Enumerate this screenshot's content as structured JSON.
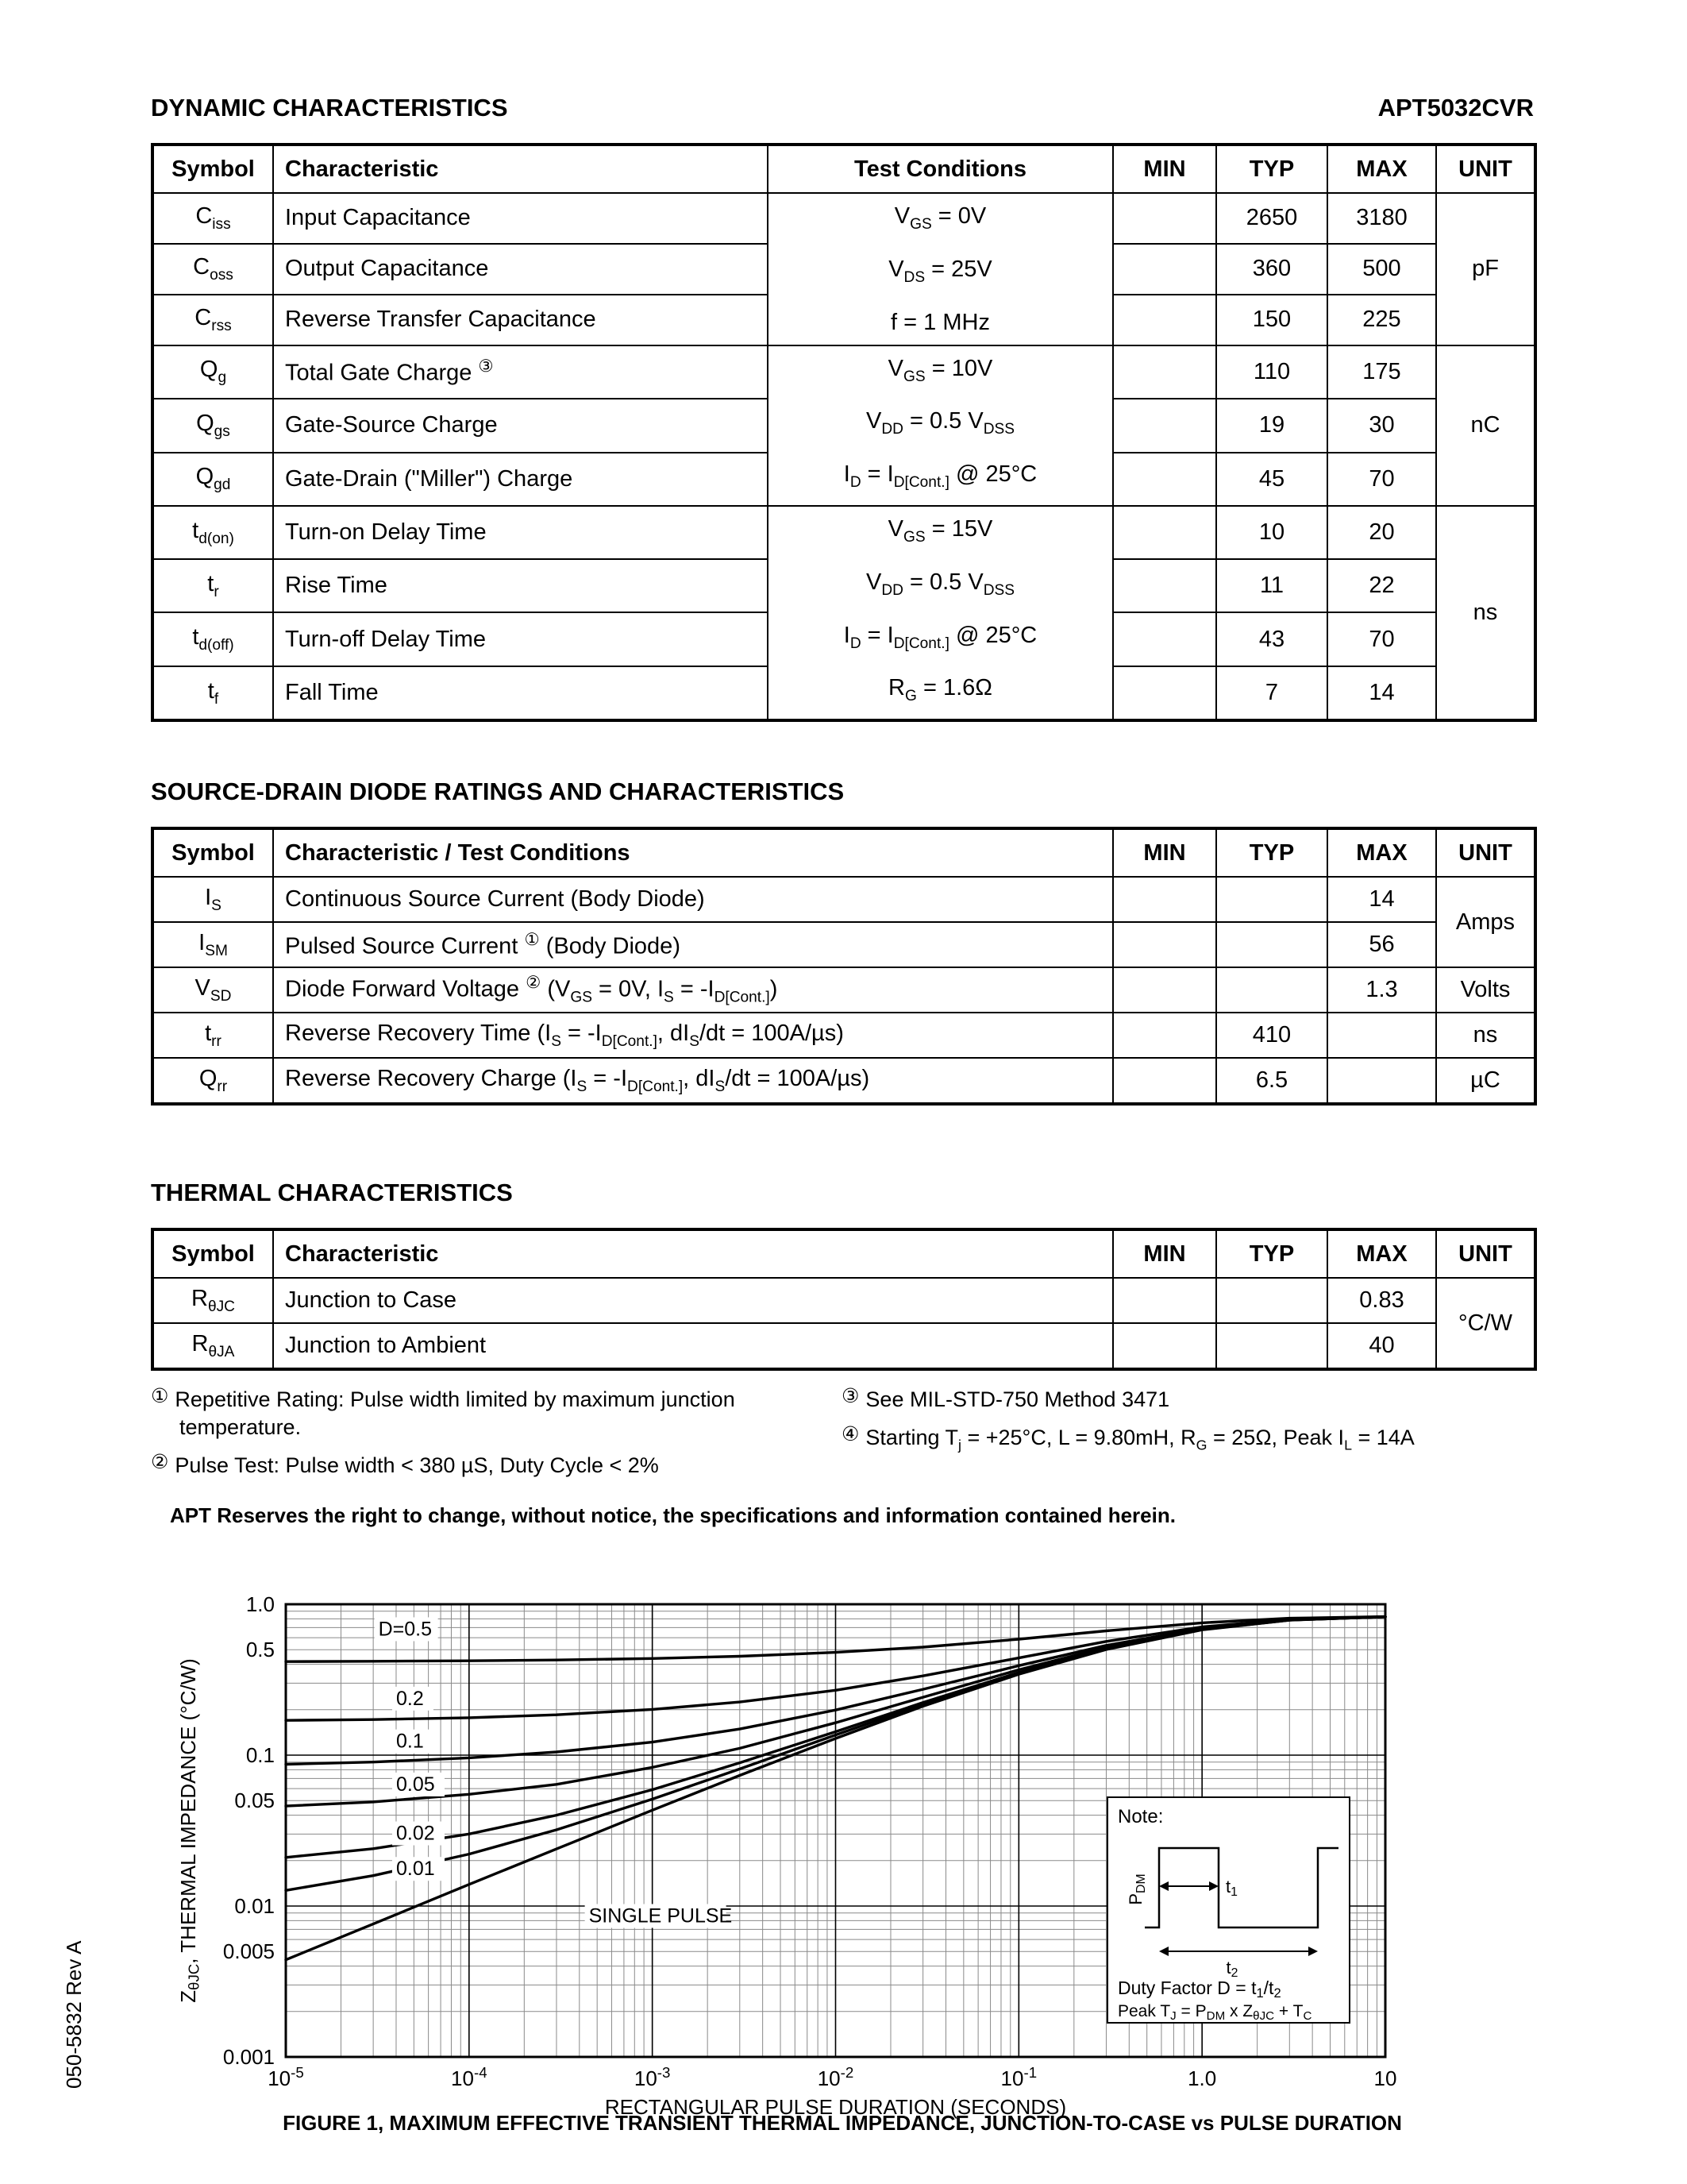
{
  "page": {
    "section1_title": "DYNAMIC CHARACTERISTICS",
    "part_number": "APT5032CVR",
    "section2_title": "SOURCE-DRAIN DIODE RATINGS AND CHARACTERISTICS",
    "section3_title": "THERMAL CHARACTERISTICS",
    "disclaimer": "APT Reserves the right to change, without notice, the specifications and information contained herein.",
    "figure_caption": "FIGURE 1, MAXIMUM EFFECTIVE TRANSIENT THERMAL IMPEDANCE, JUNCTION-TO-CASE vs PULSE DURATION",
    "side_label": "050-5832 Rev A"
  },
  "dyn_table": {
    "headers": [
      "Symbol",
      "Characteristic",
      "Test Conditions",
      "MIN",
      "TYP",
      "MAX",
      "UNIT"
    ],
    "groups": [
      {
        "conditions": [
          "V_{GS} = 0V",
          "V_{DS} = 25V",
          "f = 1 MHz"
        ],
        "unit": "pF",
        "rows": [
          {
            "symbol": "C_{iss}",
            "characteristic": "Input Capacitance",
            "min": "",
            "typ": "2650",
            "max": "3180"
          },
          {
            "symbol": "C_{oss}",
            "characteristic": "Output Capacitance",
            "min": "",
            "typ": "360",
            "max": "500"
          },
          {
            "symbol": "C_{rss}",
            "characteristic": "Reverse Transfer Capacitance",
            "min": "",
            "typ": "150",
            "max": "225"
          }
        ]
      },
      {
        "conditions": [
          "V_{GS} = 10V",
          "V_{DD} = 0.5 V_{DSS}",
          "I_{D} = I_{D[Cont.]} @ 25°C"
        ],
        "unit": "nC",
        "rows": [
          {
            "symbol": "Q_{g}",
            "characteristic": "Total Gate Charge ^{③}",
            "min": "",
            "typ": "110",
            "max": "175"
          },
          {
            "symbol": "Q_{gs}",
            "characteristic": "Gate-Source Charge",
            "min": "",
            "typ": "19",
            "max": "30"
          },
          {
            "symbol": "Q_{gd}",
            "characteristic": "Gate-Drain (\"Miller\") Charge",
            "min": "",
            "typ": "45",
            "max": "70"
          }
        ]
      },
      {
        "conditions": [
          "V_{GS} = 15V",
          "V_{DD} = 0.5 V_{DSS}",
          "I_{D} = I_{D[Cont.]} @ 25°C",
          "R_{G} = 1.6Ω"
        ],
        "unit": "ns",
        "rows": [
          {
            "symbol": "t_{d(on)}",
            "characteristic": "Turn-on Delay Time",
            "min": "",
            "typ": "10",
            "max": "20"
          },
          {
            "symbol": "t_{r}",
            "characteristic": "Rise Time",
            "min": "",
            "typ": "11",
            "max": "22"
          },
          {
            "symbol": "t_{d(off)}",
            "characteristic": "Turn-off Delay Time",
            "min": "",
            "typ": "43",
            "max": "70"
          },
          {
            "symbol": "t_{f}",
            "characteristic": "Fall Time",
            "min": "",
            "typ": "7",
            "max": "14"
          }
        ]
      }
    ]
  },
  "diode_table": {
    "headers": [
      "Symbol",
      "Characteristic / Test Conditions",
      "MIN",
      "TYP",
      "MAX",
      "UNIT"
    ],
    "rows": [
      {
        "symbol": "I_{S}",
        "characteristic": "Continuous Source Current  (Body Diode)",
        "min": "",
        "typ": "",
        "max": "14",
        "unit": "Amps"
      },
      {
        "symbol": "I_{SM}",
        "characteristic": "Pulsed Source Current ^{①}  (Body Diode)",
        "min": "",
        "typ": "",
        "max": "56"
      },
      {
        "symbol": "V_{SD}",
        "characteristic": "Diode Forward Voltage ^{②} (V_{GS} = 0V, I_{S} = -I_{D[Cont.]})",
        "min": "",
        "typ": "",
        "max": "1.3",
        "unit": "Volts"
      },
      {
        "symbol": "t_{rr}",
        "characteristic": "Reverse Recovery Time  (I_{S} = -I_{D[Cont.]}, dI_{S}/dt = 100A/µs)",
        "min": "",
        "typ": "410",
        "max": "",
        "unit": "ns"
      },
      {
        "symbol": "Q_{rr}",
        "characteristic": "Reverse Recovery Charge  (I_{S} = -I_{D[Cont.]}, dI_{S}/dt = 100A/µs)",
        "min": "",
        "typ": "6.5",
        "max": "",
        "unit": "µC"
      }
    ]
  },
  "thermal_table": {
    "headers": [
      "Symbol",
      "Characteristic",
      "MIN",
      "TYP",
      "MAX",
      "UNIT"
    ],
    "rows": [
      {
        "symbol": "R_{θJC}",
        "characteristic": "Junction to Case",
        "min": "",
        "typ": "",
        "max": "0.83",
        "unit": "°C/W"
      },
      {
        "symbol": "R_{θJA}",
        "characteristic": "Junction to Ambient",
        "min": "",
        "typ": "",
        "max": "40"
      }
    ]
  },
  "footnotes": {
    "left": [
      {
        "mark": "①",
        "text": "Repetitive Rating: Pulse width limited by maximum junction temperature."
      },
      {
        "mark": "②",
        "text": "Pulse Test: Pulse width < 380 µS, Duty Cycle < 2%"
      }
    ],
    "right": [
      {
        "mark": "③",
        "text": "See MIL-STD-750 Method 3471"
      },
      {
        "mark": "④",
        "text": "Starting T_{j} = +25°C, L = 9.80mH, R_{G} = 25Ω, Peak I_{L} = 14A"
      }
    ]
  },
  "chart_data": {
    "type": "line",
    "title": "",
    "xlabel": "RECTANGULAR PULSE DURATION (SECONDS)",
    "ylabel": "Z_{θJC}, THERMAL IMPEDANCE (°C/W)",
    "xlim": [
      1e-05,
      10
    ],
    "ylim": [
      0.001,
      1.0
    ],
    "grid": "log-log, major and minor gridlines on",
    "legend_position": "inline curve labels",
    "x": [
      1e-05,
      3e-05,
      0.0001,
      0.0003,
      0.001,
      0.003,
      0.01,
      0.03,
      0.1,
      0.3,
      1,
      3,
      10
    ],
    "series": [
      {
        "name": "D=0.5",
        "values": [
          0.417,
          0.419,
          0.422,
          0.427,
          0.437,
          0.452,
          0.48,
          0.52,
          0.587,
          0.666,
          0.753,
          0.808,
          0.828
        ]
      },
      {
        "name": "0.2",
        "values": [
          0.17,
          0.172,
          0.177,
          0.185,
          0.201,
          0.225,
          0.269,
          0.335,
          0.441,
          0.567,
          0.708,
          0.794,
          0.827
        ]
      },
      {
        "name": "0.1",
        "values": [
          0.087,
          0.09,
          0.096,
          0.105,
          0.122,
          0.149,
          0.199,
          0.273,
          0.392,
          0.534,
          0.692,
          0.79,
          0.826
        ]
      },
      {
        "name": "0.05",
        "values": [
          0.046,
          0.049,
          0.055,
          0.064,
          0.083,
          0.111,
          0.164,
          0.242,
          0.368,
          0.518,
          0.685,
          0.788,
          0.826
        ]
      },
      {
        "name": "0.02",
        "values": [
          0.021,
          0.024,
          0.03,
          0.04,
          0.059,
          0.089,
          0.143,
          0.223,
          0.353,
          0.508,
          0.68,
          0.786,
          0.826
        ]
      },
      {
        "name": "0.01",
        "values": [
          0.0127,
          0.0159,
          0.0221,
          0.032,
          0.0511,
          0.081,
          0.136,
          0.217,
          0.349,
          0.504,
          0.679,
          0.786,
          0.826
        ]
      },
      {
        "name": "SINGLE PULSE",
        "values": [
          0.0044,
          0.0076,
          0.0139,
          0.0239,
          0.0432,
          0.0734,
          0.129,
          0.211,
          0.344,
          0.501,
          0.677,
          0.785,
          0.826
        ]
      }
    ],
    "x_ticks": [
      {
        "v": 1e-05,
        "label": "10^{-5}"
      },
      {
        "v": 0.0001,
        "label": "10^{-4}"
      },
      {
        "v": 0.001,
        "label": "10^{-3}"
      },
      {
        "v": 0.01,
        "label": "10^{-2}"
      },
      {
        "v": 0.1,
        "label": "10^{-1}"
      },
      {
        "v": 1,
        "label": "1.0"
      },
      {
        "v": 10,
        "label": "10"
      }
    ],
    "y_ticks": [
      {
        "v": 1.0,
        "label": "1.0"
      },
      {
        "v": 0.5,
        "label": "0.5"
      },
      {
        "v": 0.1,
        "label": "0.1"
      },
      {
        "v": 0.05,
        "label": "0.05"
      },
      {
        "v": 0.01,
        "label": "0.01"
      },
      {
        "v": 0.005,
        "label": "0.005"
      },
      {
        "v": 0.001,
        "label": "0.001"
      }
    ],
    "curve_labels": [
      {
        "text": "D=0.5",
        "x": 3.2e-05,
        "y": 0.62
      },
      {
        "text": "0.2",
        "x": 4e-05,
        "y": 0.215
      },
      {
        "text": "0.1",
        "x": 4e-05,
        "y": 0.112
      },
      {
        "text": "0.05",
        "x": 4e-05,
        "y": 0.058
      },
      {
        "text": "0.02",
        "x": 4e-05,
        "y": 0.0275
      },
      {
        "text": "0.01",
        "x": 4e-05,
        "y": 0.016
      },
      {
        "text": "SINGLE PULSE",
        "x": 0.00045,
        "y": 0.0078
      }
    ],
    "note": {
      "title": "Note:",
      "pdm": "P_{DM}",
      "t1": "t_{1}",
      "t2": "t_{2}",
      "duty": "Duty Factor  D = t_{1}/t_{2}",
      "peak": "Peak T_{J} = P_{DM} x Z_{θJC} + T_{C}"
    }
  }
}
